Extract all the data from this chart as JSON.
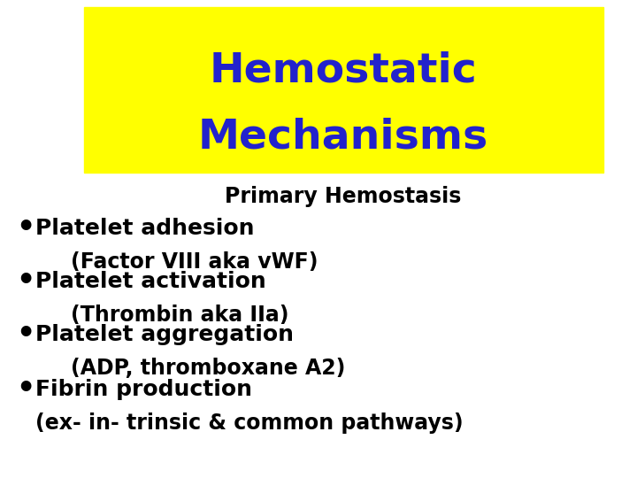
{
  "title_line1": "Hemostatic",
  "title_line2": "Mechanisms",
  "title_color": "#2222CC",
  "title_bg_color": "#FFFF00",
  "subtitle": "Primary Hemostasis",
  "subtitle_color": "#000000",
  "bg_color": "#FFFFFF",
  "bullet_items": [
    [
      "Platelet adhesion",
      "(Factor VIII aka vWF)",
      true
    ],
    [
      "Platelet activation",
      "(Thrombin aka IIa)",
      true
    ],
    [
      "Platelet aggregation",
      "(ADP, thromboxane A2)",
      true
    ],
    [
      "Fibrin production",
      "(ex- in- trinsic & common pathways)",
      false
    ]
  ],
  "bullet_color": "#000000",
  "bullet_symbol": "•",
  "title_fontsize": 34,
  "subtitle_fontsize": 17,
  "bullet_fontsize": 18,
  "subbullet_fontsize": 17
}
